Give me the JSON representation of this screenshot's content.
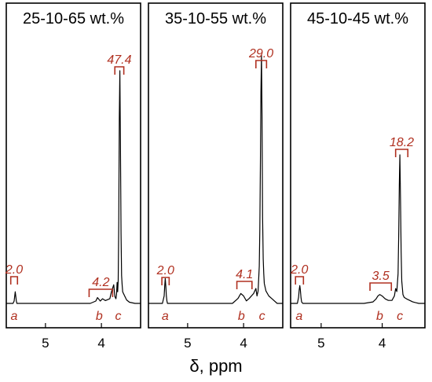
{
  "chart_data": [
    {
      "type": "line",
      "title": "25-10-65 wt.%",
      "xlabel": "δ, ppm",
      "xlim": [
        5.7,
        3.3
      ],
      "x_ticks": [
        5,
        4
      ],
      "series": [
        {
          "x": [
            5.7,
            5.58,
            5.56,
            5.55,
            5.54,
            5.53,
            5.52,
            5.51,
            5.5,
            5.4,
            4.2,
            4.1,
            4.07,
            4.02,
            3.98,
            3.93,
            3.85,
            3.82,
            3.78,
            3.76,
            3.74,
            3.73,
            3.72,
            3.71,
            3.7,
            3.69,
            3.68,
            3.67,
            3.66,
            3.65,
            3.64,
            3.63,
            3.62,
            3.6,
            3.58,
            3.55,
            3.5,
            3.4,
            3.3
          ],
          "y": [
            0.0,
            0.0,
            0.01,
            0.03,
            0.05,
            0.03,
            0.01,
            0.0,
            0.0,
            0.0,
            0.0,
            0.01,
            0.025,
            0.01,
            0.02,
            0.012,
            0.02,
            0.05,
            0.08,
            0.03,
            0.02,
            0.04,
            0.09,
            0.05,
            0.1,
            0.35,
            0.8,
            1.0,
            0.7,
            0.3,
            0.12,
            0.08,
            0.05,
            0.04,
            0.03,
            0.015,
            0.005,
            0.0,
            0.0
          ]
        }
      ],
      "integrals": [
        {
          "label": "2.0",
          "from": 5.62,
          "to": 5.5
        },
        {
          "label": "4.2",
          "from": 4.22,
          "to": 3.8
        },
        {
          "label": "47.4",
          "from": 3.76,
          "to": 3.6
        }
      ],
      "peak_labels": [
        {
          "label": "a",
          "x": 5.56
        },
        {
          "label": "b",
          "x": 4.04
        },
        {
          "label": "c",
          "x": 3.7
        }
      ]
    },
    {
      "type": "line",
      "title": "35-10-55 wt.%",
      "xlabel": "δ, ppm",
      "xlim": [
        5.7,
        3.3
      ],
      "x_ticks": [
        5,
        4
      ],
      "series": [
        {
          "x": [
            5.7,
            5.45,
            5.42,
            5.41,
            5.4,
            5.39,
            5.38,
            5.37,
            5.36,
            5.3,
            4.2,
            4.1,
            4.05,
            4.0,
            3.95,
            3.9,
            3.82,
            3.78,
            3.76,
            3.74,
            3.72,
            3.71,
            3.7,
            3.69,
            3.68,
            3.67,
            3.66,
            3.65,
            3.64,
            3.63,
            3.6,
            3.55,
            3.5,
            3.45,
            3.4,
            3.3
          ],
          "y": [
            0.0,
            0.0,
            0.03,
            0.07,
            0.1,
            0.07,
            0.03,
            0.01,
            0.0,
            0.0,
            0.0,
            0.02,
            0.04,
            0.03,
            0.01,
            0.02,
            0.04,
            0.06,
            0.03,
            0.05,
            0.15,
            0.3,
            0.55,
            0.85,
            1.0,
            0.75,
            0.35,
            0.18,
            0.12,
            0.08,
            0.05,
            0.03,
            0.02,
            0.01,
            0.0,
            0.0
          ]
        }
      ],
      "integrals": [
        {
          "label": "2.0",
          "from": 5.46,
          "to": 5.33
        },
        {
          "label": "4.1",
          "from": 4.12,
          "to": 3.85
        },
        {
          "label": "29.0",
          "from": 3.78,
          "to": 3.59
        }
      ],
      "peak_labels": [
        {
          "label": "a",
          "x": 5.4
        },
        {
          "label": "b",
          "x": 4.04
        },
        {
          "label": "c",
          "x": 3.67
        }
      ]
    },
    {
      "type": "line",
      "title": "45-10-45 wt.%",
      "xlabel": "δ, ppm",
      "xlim": [
        5.5,
        3.3
      ],
      "x_ticks": [
        5,
        4
      ],
      "series": [
        {
          "x": [
            5.5,
            5.39,
            5.37,
            5.36,
            5.35,
            5.34,
            5.33,
            5.32,
            5.3,
            4.3,
            4.15,
            4.1,
            4.07,
            4.04,
            4.0,
            3.95,
            3.9,
            3.84,
            3.8,
            3.78,
            3.76,
            3.74,
            3.73,
            3.72,
            3.71,
            3.7,
            3.69,
            3.68,
            3.66,
            3.64,
            3.6,
            3.55,
            3.5,
            3.45,
            3.4,
            3.3
          ],
          "y": [
            0.0,
            0.0,
            0.04,
            0.09,
            0.12,
            0.09,
            0.04,
            0.01,
            0.0,
            0.0,
            0.01,
            0.03,
            0.05,
            0.06,
            0.05,
            0.03,
            0.02,
            0.02,
            0.05,
            0.1,
            0.08,
            0.2,
            0.45,
            0.8,
            1.0,
            0.7,
            0.35,
            0.15,
            0.06,
            0.04,
            0.03,
            0.02,
            0.01,
            0.005,
            0.0,
            0.0
          ]
        }
      ],
      "integrals": [
        {
          "label": "2.0",
          "from": 5.42,
          "to": 5.29
        },
        {
          "label": "3.5",
          "from": 4.2,
          "to": 3.85
        },
        {
          "label": "18.2",
          "from": 3.78,
          "to": 3.58
        }
      ],
      "peak_labels": [
        {
          "label": "a",
          "x": 5.36
        },
        {
          "label": "b",
          "x": 4.04
        },
        {
          "label": "c",
          "x": 3.71
        }
      ]
    }
  ],
  "shared_xlabel": "δ, ppm"
}
